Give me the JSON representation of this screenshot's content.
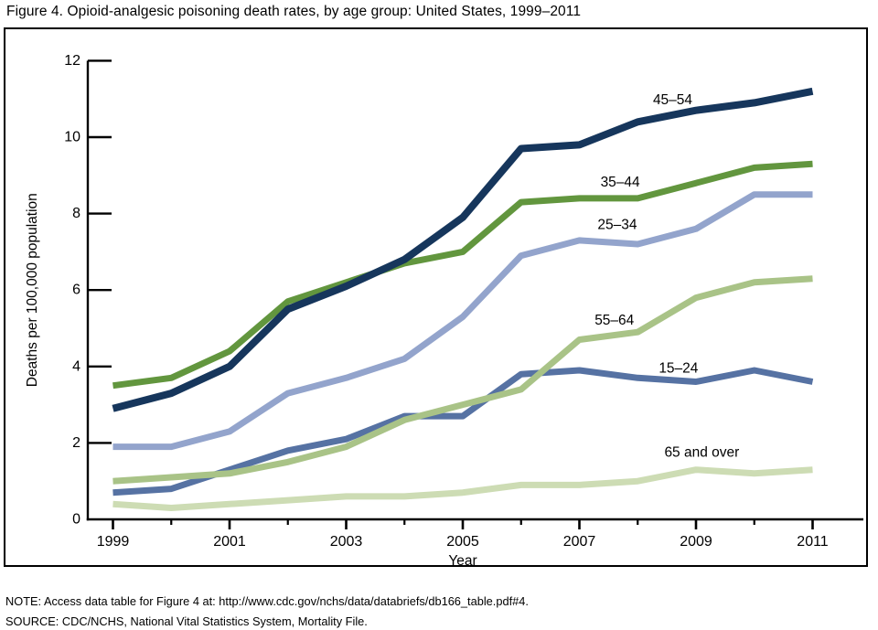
{
  "title": "Figure 4. Opioid-analgesic poisoning death rates, by age group: United States, 1999–2011",
  "notes": {
    "note": "NOTE: Access data table for Figure 4 at: http://www.cdc.gov/nchs/data/databriefs/db166_table.pdf#4.",
    "source": "SOURCE: CDC/NCHS, National Vital Statistics System, Mortality File."
  },
  "chart_data": {
    "type": "line",
    "title": "Figure 4. Opioid-analgesic poisoning death rates, by age group: United States, 1999–2011",
    "xlabel": "Year",
    "ylabel": "Deaths per 100,000 population",
    "x": [
      1999,
      2000,
      2001,
      2002,
      2003,
      2004,
      2005,
      2006,
      2007,
      2008,
      2009,
      2010,
      2011
    ],
    "xticks_labeled": [
      1999,
      2001,
      2003,
      2005,
      2007,
      2009,
      2011
    ],
    "ylim": [
      0,
      12
    ],
    "ytick_interval": 2,
    "grid": false,
    "legend_position": "inline-labels",
    "axis_color": "#000000",
    "series": [
      {
        "name": "65 and over",
        "color": "#cddcb4",
        "values": [
          0.4,
          0.3,
          0.4,
          0.5,
          0.6,
          0.6,
          0.7,
          0.9,
          0.9,
          1.0,
          1.3,
          1.2,
          1.3
        ],
        "label": {
          "x": 2009.1,
          "y": 1.75
        }
      },
      {
        "name": "15–24",
        "color": "#5672a3",
        "values": [
          0.7,
          0.8,
          1.3,
          1.8,
          2.1,
          2.7,
          2.7,
          3.8,
          3.9,
          3.7,
          3.6,
          3.9,
          3.6
        ],
        "label": {
          "x": 2008.7,
          "y": 3.95
        }
      },
      {
        "name": "55–64",
        "color": "#a9c387",
        "values": [
          1.0,
          1.1,
          1.2,
          1.5,
          1.9,
          2.6,
          3.0,
          3.4,
          4.7,
          4.9,
          5.8,
          6.2,
          6.3
        ],
        "label": {
          "x": 2007.6,
          "y": 5.2
        }
      },
      {
        "name": "25–34",
        "color": "#93a4cc",
        "values": [
          1.9,
          1.9,
          2.3,
          3.3,
          3.7,
          4.2,
          5.3,
          6.9,
          7.3,
          7.2,
          7.6,
          8.5,
          8.5
        ],
        "label": {
          "x": 2007.65,
          "y": 7.7
        }
      },
      {
        "name": "35–44",
        "color": "#62963e",
        "values": [
          3.5,
          3.7,
          4.4,
          5.7,
          6.2,
          6.7,
          7.0,
          8.3,
          8.4,
          8.4,
          8.8,
          9.2,
          9.3
        ],
        "label": {
          "x": 2007.7,
          "y": 8.82
        }
      },
      {
        "name": "45–54",
        "color": "#16365c",
        "values": [
          2.9,
          3.3,
          4.0,
          5.5,
          6.1,
          6.8,
          7.9,
          9.7,
          9.8,
          10.4,
          10.7,
          10.9,
          11.2
        ],
        "label": {
          "x": 2008.6,
          "y": 10.97
        }
      }
    ]
  }
}
